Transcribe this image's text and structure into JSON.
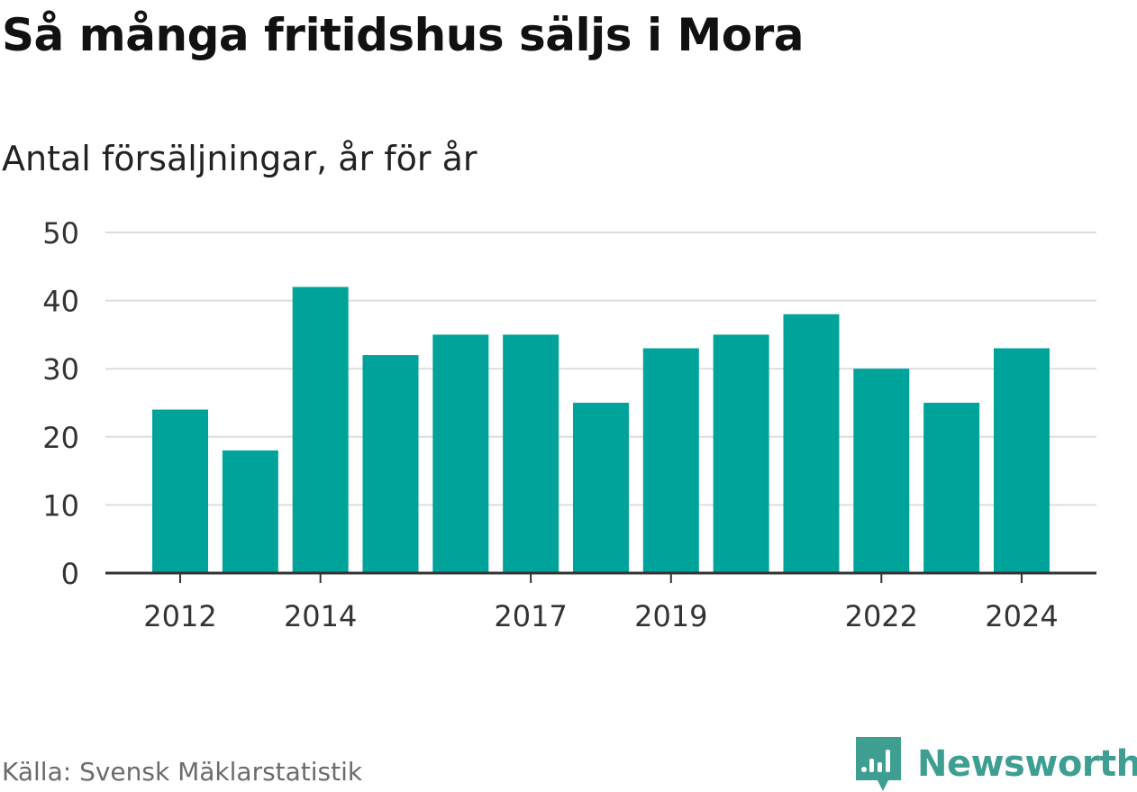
{
  "title": "Så många fritidshus säljs i Mora",
  "subtitle": "Antal försäljningar, år för år",
  "source": "Källa: Svensk Mäklarstatistik",
  "brand": "Newsworthy",
  "colors": {
    "bar": "#00a39a",
    "grid": "#dddddd",
    "axis": "#333333",
    "brand": "#3e9e92"
  },
  "chart_data": {
    "type": "bar",
    "categories": [
      "2012",
      "2013",
      "2014",
      "2015",
      "2016",
      "2017",
      "2018",
      "2019",
      "2020",
      "2021",
      "2022",
      "2023",
      "2024"
    ],
    "values": [
      24,
      18,
      42,
      32,
      35,
      35,
      25,
      33,
      35,
      38,
      30,
      25,
      33
    ],
    "xticks": [
      "2012",
      "2014",
      "2017",
      "2019",
      "2022",
      "2024"
    ],
    "yticks": [
      0,
      10,
      20,
      30,
      40,
      50
    ],
    "ylim": [
      0,
      50
    ],
    "grid": true,
    "legend": "none"
  }
}
